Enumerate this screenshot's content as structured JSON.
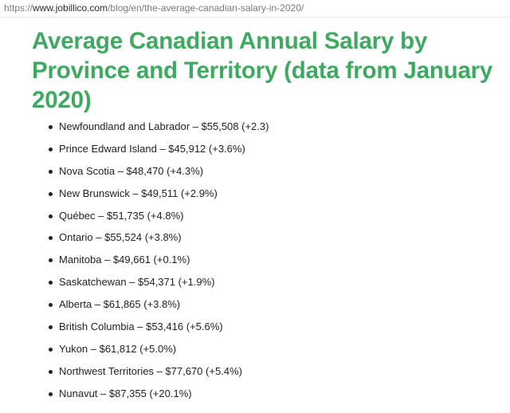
{
  "url_bar": {
    "prefix": "https://",
    "domain": "www.jobillico.com",
    "path": "/blog/en/the-average-canadian-salary-in-2020/"
  },
  "page_title": "Average Canadian Annual Salary by Province and Territory (data from January 2020)",
  "salary_list": [
    {
      "text": "Newfoundland and Labrador – $55,508 (+2.3)"
    },
    {
      "text": "Prince Edward Island – $45,912 (+3.6%)"
    },
    {
      "text": "Nova Scotia – $48,470 (+4.3%)"
    },
    {
      "text": "New Brunswick – $49,511 (+2.9%)"
    },
    {
      "text": "Québec – $51,735 (+4.8%)"
    },
    {
      "text": "Ontario – $55,524 (+3.8%)"
    },
    {
      "text": "Manitoba – $49,661 (+0.1%)"
    },
    {
      "text": "Saskatchewan – $54,371 (+1.9%)"
    },
    {
      "text": "Alberta – $61,865 (+3.8%)"
    },
    {
      "text": "British Columbia – $53,416 (+5.6%)"
    },
    {
      "text": "Yukon – $61,812 (+5.0%)"
    },
    {
      "text": "Northwest Territories – $77,670 (+5.4%)"
    },
    {
      "text": "Nunavut – $87,355 (+20.1%)"
    }
  ]
}
